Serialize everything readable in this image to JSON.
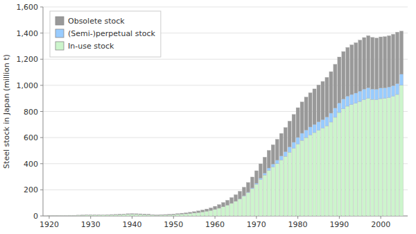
{
  "chart_data": {
    "type": "bar",
    "stacked": true,
    "grid": true,
    "legend": "upper left",
    "y_label": "Steel stock in Japan (million t)",
    "x": [
      1920,
      1921,
      1922,
      1923,
      1924,
      1925,
      1926,
      1927,
      1928,
      1929,
      1930,
      1931,
      1932,
      1933,
      1934,
      1935,
      1936,
      1937,
      1938,
      1939,
      1940,
      1941,
      1942,
      1943,
      1944,
      1945,
      1946,
      1947,
      1948,
      1949,
      1950,
      1951,
      1952,
      1953,
      1954,
      1955,
      1956,
      1957,
      1958,
      1959,
      1960,
      1961,
      1962,
      1963,
      1964,
      1965,
      1966,
      1967,
      1968,
      1969,
      1970,
      1971,
      1972,
      1973,
      1974,
      1975,
      1976,
      1977,
      1978,
      1979,
      1980,
      1981,
      1982,
      1983,
      1984,
      1985,
      1986,
      1987,
      1988,
      1989,
      1990,
      1991,
      1992,
      1993,
      1994,
      1995,
      1996,
      1997,
      1998,
      1999,
      2000,
      2001,
      2002,
      2003,
      2004,
      2005
    ],
    "xlim": [
      1918.5,
      2006.5
    ],
    "xticks": [
      1920,
      1930,
      1940,
      1950,
      1960,
      1970,
      1980,
      1990,
      2000
    ],
    "ylim": [
      0,
      1600
    ],
    "yticks": [
      0,
      200,
      400,
      600,
      800,
      {
        "value": 1000,
        "label": "1,000"
      },
      {
        "value": 1200,
        "label": "1,200"
      },
      {
        "value": 1400,
        "label": "1,400"
      },
      {
        "value": 1600,
        "label": "1,600"
      }
    ],
    "series": [
      {
        "name": "In-use stock",
        "color": "#ccf5cc",
        "values": [
          2,
          2,
          2,
          3,
          3,
          4,
          4,
          5,
          5,
          6,
          6,
          6,
          6,
          7,
          7,
          8,
          9,
          10,
          11,
          12,
          13,
          12,
          11,
          10,
          9,
          6,
          5,
          6,
          7,
          8,
          10,
          12,
          14,
          16,
          19,
          22,
          26,
          31,
          36,
          42,
          50,
          59,
          70,
          82,
          96,
          112,
          130,
          152,
          178,
          208,
          242,
          278,
          313,
          348,
          375,
          400,
          428,
          456,
          487,
          518,
          550,
          578,
          600,
          620,
          638,
          656,
          672,
          690,
          718,
          755,
          792,
          820,
          840,
          852,
          862,
          876,
          890,
          900,
          892,
          890,
          898,
          900,
          906,
          916,
          930,
          1000
        ]
      },
      {
        "name": "(Semi-)perpetual stock",
        "color": "#99ccff",
        "values": [
          0,
          0,
          0,
          0,
          0,
          0,
          0,
          0,
          0,
          0,
          0,
          0,
          0,
          0,
          0,
          0,
          0,
          0,
          0,
          0,
          0,
          0,
          0,
          0,
          0,
          0,
          0,
          0,
          0,
          0,
          0,
          0,
          0,
          0,
          0,
          0,
          0,
          0,
          0,
          0,
          0,
          0,
          0,
          0,
          1,
          1,
          2,
          3,
          4,
          6,
          8,
          11,
          15,
          19,
          23,
          27,
          31,
          36,
          41,
          46,
          51,
          55,
          58,
          61,
          63,
          65,
          66,
          67,
          69,
          71,
          73,
          75,
          77,
          78,
          79,
          80,
          81,
          82,
          80,
          80,
          81,
          81,
          82,
          82,
          83,
          85
        ]
      },
      {
        "name": "Obsolete stock",
        "color": "#999999",
        "values": [
          1,
          1,
          1,
          1,
          1,
          1,
          1,
          1,
          2,
          2,
          2,
          2,
          2,
          2,
          3,
          3,
          3,
          4,
          4,
          5,
          5,
          5,
          5,
          5,
          5,
          4,
          3,
          4,
          4,
          5,
          5,
          6,
          7,
          8,
          9,
          11,
          13,
          15,
          17,
          20,
          24,
          28,
          33,
          38,
          44,
          50,
          57,
          65,
          74,
          84,
          96,
          110,
          122,
          135,
          147,
          160,
          173,
          185,
          198,
          213,
          228,
          240,
          252,
          262,
          272,
          282,
          292,
          304,
          318,
          335,
          352,
          364,
          373,
          380,
          385,
          390,
          395,
          398,
          395,
          392,
          392,
          392,
          392,
          393,
          394,
          330
        ]
      }
    ]
  }
}
